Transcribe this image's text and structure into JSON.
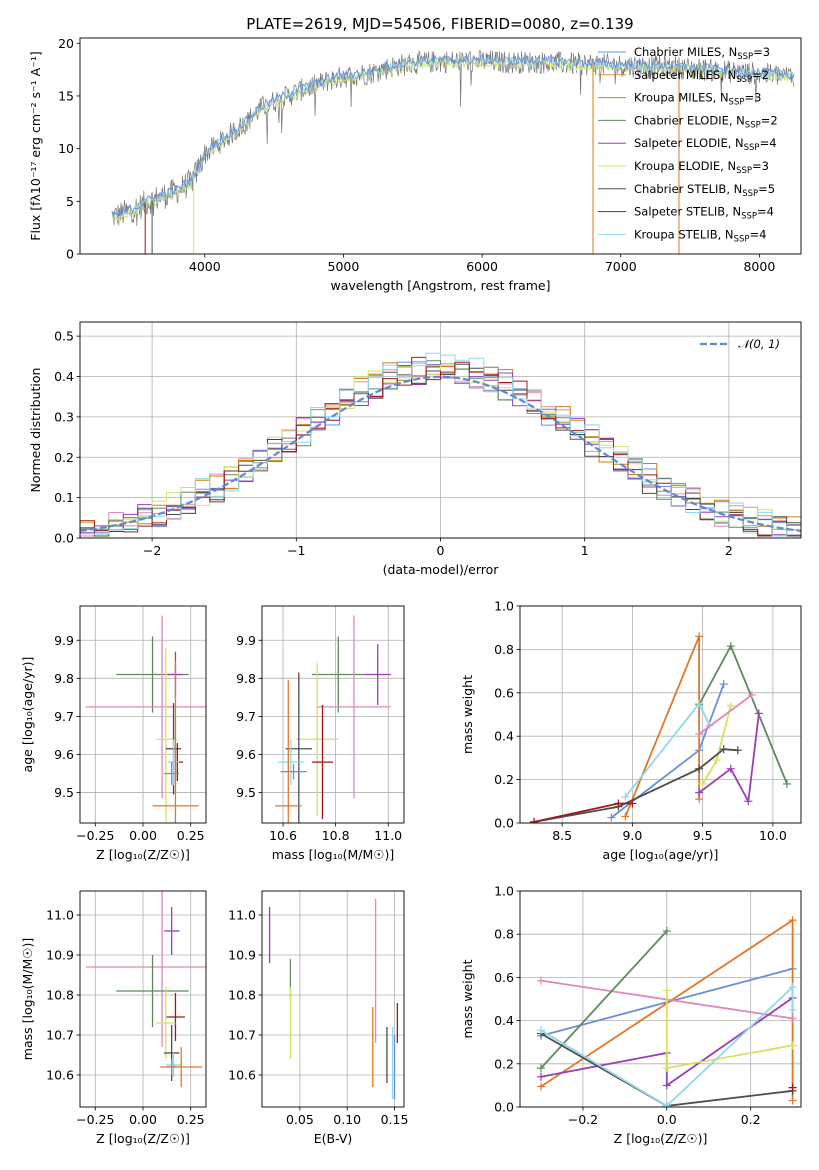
{
  "figure": {
    "title": "PLATE=2619, MJD=54506, FIBERID=0080, z=0.139"
  },
  "colors": {
    "Chabrier MILES": "#6a8fdd",
    "Salpeter MILES": "#e08a4a",
    "Kroupa MILES": "#c8860a",
    "Chabrier ELODIE": "#5e8a5e",
    "Salpeter ELODIE": "#9a3db8",
    "Kroupa ELODIE": "#d8e060",
    "Chabrier STELIB": "#4d4d4d",
    "Salpeter STELIB": "#a01818",
    "Kroupa STELIB": "#8fd8e8",
    "kroupa_miles_errbar": "#e07828",
    "pink": "#e088b8",
    "normal": "#5b8bd6"
  },
  "chart_data": [
    {
      "id": "spectrum",
      "type": "line",
      "title": "PLATE=2619, MJD=54506, FIBERID=0080, z=0.139",
      "xlabel": "wavelength [Angstrom, rest frame]",
      "ylabel": "Flux [fλ10⁻¹⁷ erg cm⁻² s⁻¹ A⁻¹]",
      "xlim": [
        3100,
        8300
      ],
      "ylim": [
        0,
        20.5
      ],
      "xticks": [
        4000,
        5000,
        6000,
        7000,
        8000
      ],
      "yticks": [
        0,
        5,
        10,
        15,
        20
      ],
      "grid": false,
      "legend_position": "upper-right",
      "envelope": {
        "x": [
          3330,
          3400,
          3500,
          3600,
          3700,
          3800,
          3900,
          3950,
          4000,
          4100,
          4200,
          4300,
          4400,
          4500,
          4600,
          4700,
          4800,
          4900,
          5000,
          5100,
          5200,
          5300,
          5400,
          5500,
          5600,
          5800,
          6000,
          6200,
          6400,
          6600,
          6800,
          7000,
          7200,
          7400,
          7600,
          7800,
          8000,
          8200
        ],
        "y": [
          3.5,
          3.8,
          4.3,
          5.0,
          5.5,
          6.0,
          6.8,
          8.0,
          9.5,
          10.5,
          11.5,
          12.5,
          13.8,
          14.5,
          15.0,
          15.6,
          16.0,
          16.5,
          16.8,
          17.0,
          17.2,
          17.6,
          17.9,
          18.1,
          18.2,
          18.3,
          18.3,
          18.2,
          18.2,
          18.1,
          18.0,
          17.9,
          17.8,
          17.7,
          17.5,
          17.3,
          17.1,
          16.9
        ]
      },
      "series": [
        {
          "name": "Chabrier MILES, NSSP=3",
          "label": "Chabrier MILES, N",
          "sub": "SSP",
          "suffix": "=3",
          "color_key": "Chabrier MILES"
        },
        {
          "name": "Salpeter MILES, NSSP=2",
          "label": "Salpeter MILES, N",
          "sub": "SSP",
          "suffix": "=2",
          "color_key": "Salpeter MILES"
        },
        {
          "name": "Kroupa MILES, NSSP=3",
          "label": "Kroupa MILES, N",
          "sub": "SSP",
          "suffix": "=3",
          "color_key": "Kroupa MILES"
        },
        {
          "name": "Chabrier ELODIE, NSSP=2",
          "label": "Chabrier ELODIE, N",
          "sub": "SSP",
          "suffix": "=2",
          "color_key": "Chabrier ELODIE"
        },
        {
          "name": "Salpeter ELODIE, NSSP=4",
          "label": "Salpeter ELODIE, N",
          "sub": "SSP",
          "suffix": "=4",
          "color_key": "Salpeter ELODIE"
        },
        {
          "name": "Kroupa ELODIE, NSSP=3",
          "label": "Kroupa ELODIE, N",
          "sub": "SSP",
          "suffix": "=3",
          "color_key": "Kroupa ELODIE"
        },
        {
          "name": "Chabrier STELIB, NSSP=5",
          "label": "Chabrier STELIB, N",
          "sub": "SSP",
          "suffix": "=5",
          "color_key": "Chabrier STELIB"
        },
        {
          "name": "Salpeter STELIB, NSSP=4",
          "label": "Salpeter STELIB, N",
          "sub": "SSP",
          "suffix": "=4",
          "color_key": "Salpeter STELIB"
        },
        {
          "name": "Kroupa STELIB, NSSP=4",
          "label": "Kroupa STELIB, N",
          "sub": "SSP",
          "suffix": "=4",
          "color_key": "Kroupa STELIB"
        }
      ],
      "dropouts": [
        {
          "x": 3570,
          "color_key": "Salpeter STELIB"
        },
        {
          "x": 3620,
          "color_key": "Chabrier STELIB"
        },
        {
          "x": 3920,
          "color_key": "Kroupa ELODIE"
        },
        {
          "x": 6800,
          "color_key": "Kroupa MILES"
        },
        {
          "x": 7420,
          "color_key": "kroupa_miles_errbar"
        }
      ]
    },
    {
      "id": "residuals",
      "type": "histogram",
      "xlabel": "(data-model)/error",
      "ylabel": "Normed distribution",
      "xlim": [
        -2.5,
        2.5
      ],
      "ylim": [
        0,
        0.535
      ],
      "xticks": [
        -2,
        -1,
        0,
        1,
        2
      ],
      "yticks": [
        0.0,
        0.1,
        0.2,
        0.3,
        0.4,
        0.5
      ],
      "grid": true,
      "legend_position": "upper-right",
      "normal_label": "𝒩(0, 1)",
      "bin_width": 0.1
    },
    {
      "id": "z_vs_age",
      "type": "errorbar",
      "xlabel": "Z [log₁₀(Z/Z☉)]",
      "ylabel": "age  [log₁₀(age/yr)]",
      "xlim": [
        -0.33,
        0.33
      ],
      "ylim": [
        9.42,
        9.99
      ],
      "xticks": [
        -0.25,
        0.0,
        0.25
      ],
      "yticks": [
        9.5,
        9.6,
        9.7,
        9.8,
        9.9
      ],
      "grid": true,
      "points": [
        {
          "color_key": "Chabrier ELODIE",
          "x": 0.05,
          "xerr": 0.19,
          "y": 9.81,
          "yerr": 0.1
        },
        {
          "color_key": "Salpeter ELODIE",
          "x": 0.17,
          "xerr": 0.04,
          "y": 9.81,
          "yerr": 0.06
        },
        {
          "color_key": "pink",
          "x": 0.1,
          "xerr": 0.4,
          "y": 9.725,
          "yerr": 0.24
        },
        {
          "color_key": "Kroupa ELODIE",
          "x": 0.12,
          "xerr": 0.05,
          "y": 9.64,
          "yerr": 0.24
        },
        {
          "color_key": "Chabrier STELIB",
          "x": 0.16,
          "xerr": 0.04,
          "y": 9.615,
          "yerr": 0.12
        },
        {
          "color_key": "Salpeter STELIB",
          "x": 0.18,
          "xerr": 0.03,
          "y": 9.58,
          "yerr": 0.05
        },
        {
          "color_key": "Kroupa STELIB",
          "x": 0.16,
          "xerr": 0.03,
          "y": 9.58,
          "yerr": 0.06
        },
        {
          "color_key": "Chabrier MILES",
          "x": 0.15,
          "xerr": 0.04,
          "y": 9.55,
          "yerr": 0.03
        },
        {
          "color_key": "kroupa_miles_errbar",
          "x": 0.17,
          "xerr": 0.12,
          "y": 9.465,
          "yerr": 0.38
        }
      ]
    },
    {
      "id": "mass_vs_age",
      "type": "errorbar",
      "xlabel": "mass [log₁₀(M/M☉)]",
      "ylabel": "",
      "xlim": [
        10.52,
        11.06
      ],
      "ylim": [
        9.42,
        9.99
      ],
      "xticks": [
        10.6,
        10.8,
        11.0
      ],
      "yticks": [
        9.5,
        9.6,
        9.7,
        9.8,
        9.9
      ],
      "grid": true,
      "points": [
        {
          "color_key": "Chabrier ELODIE",
          "x": 10.81,
          "xerr": 0.1,
          "y": 9.81,
          "yerr": 0.1
        },
        {
          "color_key": "Salpeter ELODIE",
          "x": 10.96,
          "xerr": 0.05,
          "y": 9.81,
          "yerr": 0.08
        },
        {
          "color_key": "pink",
          "x": 10.87,
          "xerr": 0.14,
          "y": 9.725,
          "yerr": 0.24
        },
        {
          "color_key": "Kroupa ELODIE",
          "x": 10.73,
          "xerr": 0.08,
          "y": 9.64,
          "yerr": 0.2
        },
        {
          "color_key": "Chabrier STELIB",
          "x": 10.66,
          "xerr": 0.05,
          "y": 9.615,
          "yerr": 0.2
        },
        {
          "color_key": "Salpeter STELIB",
          "x": 10.75,
          "xerr": 0.04,
          "y": 9.58,
          "yerr": 0.15
        },
        {
          "color_key": "Kroupa STELIB",
          "x": 10.63,
          "xerr": 0.05,
          "y": 9.58,
          "yerr": 0.06
        },
        {
          "color_key": "Chabrier MILES",
          "x": 10.64,
          "xerr": 0.05,
          "y": 9.555,
          "yerr": 0.02
        },
        {
          "color_key": "kroupa_miles_errbar",
          "x": 10.62,
          "xerr": 0.05,
          "y": 9.465,
          "yerr": 0.33
        }
      ]
    },
    {
      "id": "age_weights",
      "type": "line",
      "xlabel": "age  [log₁₀(age/yr)]",
      "ylabel": "mass weight",
      "xlim": [
        8.2,
        10.2
      ],
      "ylim": [
        0,
        1.0
      ],
      "xticks": [
        8.5,
        9.0,
        9.5,
        10.0
      ],
      "yticks": [
        0.0,
        0.2,
        0.4,
        0.6,
        0.8,
        1.0
      ],
      "grid": true,
      "series": [
        {
          "color_key": "Chabrier MILES",
          "x": [
            8.85,
            9.475,
            9.65
          ],
          "y": [
            0.025,
            0.335,
            0.64
          ]
        },
        {
          "color_key": "kroupa_miles_errbar",
          "x": [
            8.95,
            9.475,
            9.475
          ],
          "y": [
            0.03,
            0.86,
            0.11
          ]
        },
        {
          "color_key": "Chabrier ELODIE",
          "x": [
            9.475,
            9.7,
            10.1
          ],
          "y": [
            0.545,
            0.815,
            0.18
          ]
        },
        {
          "color_key": "Salpeter ELODIE",
          "x": [
            9.475,
            9.7,
            9.825,
            9.9
          ],
          "y": [
            0.14,
            0.25,
            0.1,
            0.505
          ]
        },
        {
          "color_key": "Kroupa ELODIE",
          "x": [
            9.5,
            9.6,
            9.7
          ],
          "y": [
            0.18,
            0.29,
            0.54
          ]
        },
        {
          "color_key": "Chabrier STELIB",
          "x": [
            8.3,
            8.9,
            9.475,
            9.65,
            9.75
          ],
          "y": [
            0.005,
            0.075,
            0.25,
            0.34,
            0.335
          ]
        },
        {
          "color_key": "Salpeter STELIB",
          "x": [
            8.3,
            8.9,
            9.0
          ],
          "y": [
            0.005,
            0.09,
            0.09
          ]
        },
        {
          "color_key": "Kroupa STELIB",
          "x": [
            8.95,
            9.475,
            9.55
          ],
          "y": [
            0.12,
            0.55,
            0.45
          ]
        },
        {
          "color_key": "pink",
          "x": [
            9.475,
            9.85
          ],
          "y": [
            0.41,
            0.59
          ]
        }
      ]
    },
    {
      "id": "z_vs_mass",
      "type": "errorbar",
      "xlabel": "Z [log₁₀(Z/Z☉)]",
      "ylabel": "mass [log₁₀(M/M☉)]",
      "xlim": [
        -0.33,
        0.33
      ],
      "ylim": [
        10.52,
        11.06
      ],
      "xticks": [
        -0.25,
        0.0,
        0.25
      ],
      "yticks": [
        10.6,
        10.7,
        10.8,
        10.9,
        11.0
      ],
      "grid": true,
      "points": [
        {
          "color_key": "Salpeter ELODIE",
          "x": 0.15,
          "xerr": 0.04,
          "y": 10.96,
          "yerr": 0.06
        },
        {
          "color_key": "pink",
          "x": 0.1,
          "xerr": 0.4,
          "y": 10.87,
          "yerr": 0.2
        },
        {
          "color_key": "Chabrier ELODIE",
          "x": 0.05,
          "xerr": 0.19,
          "y": 10.81,
          "yerr": 0.09
        },
        {
          "color_key": "Salpeter STELIB",
          "x": 0.17,
          "xerr": 0.05,
          "y": 10.745,
          "yerr": 0.06
        },
        {
          "color_key": "Kroupa ELODIE",
          "x": 0.12,
          "xerr": 0.05,
          "y": 10.73,
          "yerr": 0.09
        },
        {
          "color_key": "Chabrier STELIB",
          "x": 0.15,
          "xerr": 0.04,
          "y": 10.655,
          "yerr": 0.07
        },
        {
          "color_key": "Kroupa STELIB",
          "x": 0.16,
          "xerr": 0.04,
          "y": 10.625,
          "yerr": 0.03
        },
        {
          "color_key": "Chabrier MILES",
          "x": 0.15,
          "xerr": 0.03,
          "y": 10.62,
          "yerr": 0.02
        },
        {
          "color_key": "kroupa_miles_errbar",
          "x": 0.2,
          "xerr": 0.11,
          "y": 10.62,
          "yerr": 0.05
        }
      ]
    },
    {
      "id": "ebv_vs_mass",
      "type": "errorbar",
      "xlabel": "E(B-V)",
      "ylabel": "",
      "xlim": [
        0.01,
        0.16
      ],
      "ylim": [
        10.52,
        11.06
      ],
      "xticks": [
        0.05,
        0.1,
        0.15
      ],
      "yticks": [
        10.6,
        10.7,
        10.8,
        10.9,
        11.0
      ],
      "grid": true,
      "points": [
        {
          "color_key": "Salpeter ELODIE",
          "x": 0.018,
          "xerr": 0,
          "y": 10.95,
          "yerr": 0.07
        },
        {
          "color_key": "Chabrier ELODIE",
          "x": 0.04,
          "xerr": 0,
          "y": 10.84,
          "yerr": 0.05
        },
        {
          "color_key": "Kroupa ELODIE",
          "x": 0.04,
          "xerr": 0,
          "y": 10.73,
          "yerr": 0.09
        },
        {
          "color_key": "pink",
          "x": 0.13,
          "xerr": 0,
          "y": 10.86,
          "yerr": 0.18
        },
        {
          "color_key": "kroupa_miles_errbar",
          "x": 0.127,
          "xerr": 0,
          "y": 10.67,
          "yerr": 0.1
        },
        {
          "color_key": "Chabrier STELIB",
          "x": 0.142,
          "xerr": 0,
          "y": 10.65,
          "yerr": 0.07
        },
        {
          "color_key": "Chabrier MILES",
          "x": 0.15,
          "xerr": 0,
          "y": 10.62,
          "yerr": 0.08
        },
        {
          "color_key": "Kroupa STELIB",
          "x": 0.148,
          "xerr": 0,
          "y": 10.63,
          "yerr": 0.09
        },
        {
          "color_key": "Salpeter STELIB",
          "x": 0.153,
          "xerr": 0,
          "y": 10.73,
          "yerr": 0.05
        }
      ]
    },
    {
      "id": "z_weights",
      "type": "line",
      "xlabel": "Z [log₁₀(Z/Z☉)]",
      "ylabel": "mass weight",
      "xlim": [
        -0.35,
        0.32
      ],
      "ylim": [
        0,
        1.0
      ],
      "xticks": [
        -0.2,
        0.0,
        0.2
      ],
      "yticks": [
        0.0,
        0.2,
        0.4,
        0.6,
        0.8,
        1.0
      ],
      "grid": true,
      "series": [
        {
          "color_key": "Chabrier MILES",
          "x": [
            -0.3,
            0.3
          ],
          "y": [
            0.33,
            0.64
          ]
        },
        {
          "color_key": "kroupa_miles_errbar",
          "x": [
            -0.3,
            0.3,
            0.3
          ],
          "y": [
            0.095,
            0.865,
            0.03
          ]
        },
        {
          "color_key": "pink",
          "x": [
            -0.3,
            0.3
          ],
          "y": [
            0.585,
            0.41
          ]
        },
        {
          "color_key": "Chabrier ELODIE",
          "x": [
            -0.3,
            0.0
          ],
          "y": [
            0.18,
            0.815
          ]
        },
        {
          "color_key": "Salpeter ELODIE",
          "x": [
            -0.3,
            0.0,
            0.0,
            0.3
          ],
          "y": [
            0.14,
            0.25,
            0.1,
            0.505
          ]
        },
        {
          "color_key": "Kroupa ELODIE",
          "x": [
            0.0,
            0.0,
            0.3
          ],
          "y": [
            0.54,
            0.18,
            0.285
          ]
        },
        {
          "color_key": "Chabrier STELIB",
          "x": [
            -0.3,
            0.0,
            0.3
          ],
          "y": [
            0.34,
            0.005,
            0.075
          ]
        },
        {
          "color_key": "Salpeter STELIB",
          "x": [
            0.3,
            0.3
          ],
          "y": [
            0.09,
            0.09
          ]
        },
        {
          "color_key": "Kroupa STELIB",
          "x": [
            -0.3,
            0.0,
            0.3,
            0.3
          ],
          "y": [
            0.355,
            0.005,
            0.555,
            0.45
          ]
        }
      ]
    }
  ]
}
